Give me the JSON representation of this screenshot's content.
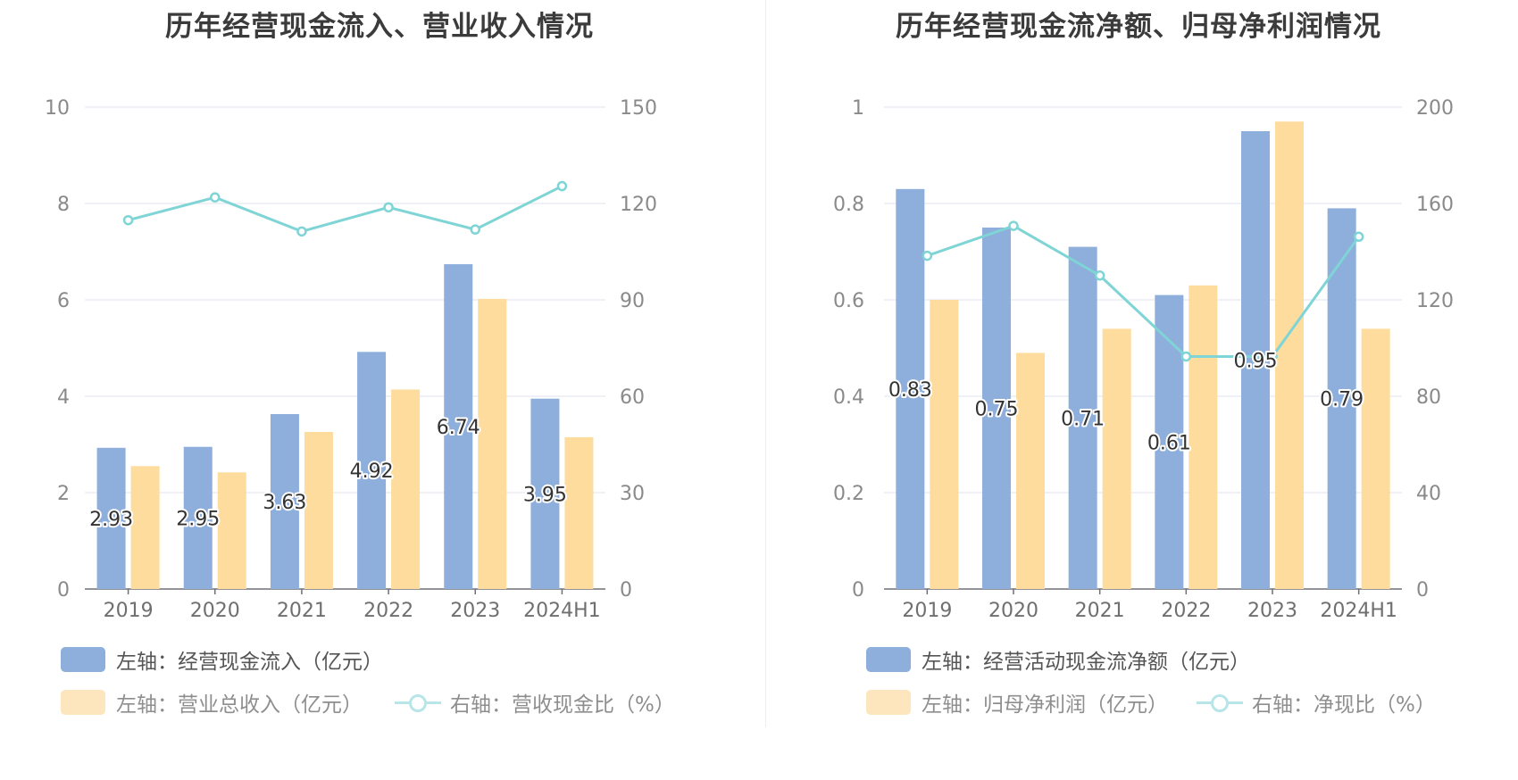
{
  "chart_data": [
    {
      "type": "bar+line",
      "title": "历年经营现金流入、营业收入情况",
      "categories": [
        "2019",
        "2020",
        "2021",
        "2022",
        "2023",
        "2024H1"
      ],
      "left_axis": {
        "min": 0,
        "max": 10,
        "ticks": [
          "0",
          "2",
          "4",
          "6",
          "8",
          "10"
        ]
      },
      "right_axis": {
        "min": 0,
        "max": 150,
        "ticks": [
          "0",
          "30",
          "60",
          "90",
          "120",
          "150"
        ]
      },
      "series": [
        {
          "name": "左轴：经营现金流入（亿元）",
          "axis": "left",
          "kind": "bar",
          "color": "#8eaedb",
          "values": [
            2.93,
            2.95,
            3.63,
            4.92,
            6.74,
            3.95
          ],
          "labels": [
            "2.93",
            "2.95",
            "3.63",
            "4.92",
            "6.74",
            "3.95"
          ]
        },
        {
          "name": "左轴：营业总收入（亿元）",
          "axis": "left",
          "kind": "bar",
          "color": "#fddc9e",
          "values": [
            2.55,
            2.42,
            3.26,
            4.14,
            6.02,
            3.15
          ]
        },
        {
          "name": "右轴：营收现金比（%）",
          "axis": "right",
          "kind": "line",
          "color": "#7fd4d6",
          "values": [
            114.8,
            121.9,
            111.3,
            118.8,
            111.9,
            125.4
          ]
        }
      ]
    },
    {
      "type": "bar+line",
      "title": "历年经营现金流净额、归母净利润情况",
      "categories": [
        "2019",
        "2020",
        "2021",
        "2022",
        "2023",
        "2024H1"
      ],
      "left_axis": {
        "min": 0,
        "max": 1,
        "ticks": [
          "0",
          "0.2",
          "0.4",
          "0.6",
          "0.8",
          "1"
        ]
      },
      "right_axis": {
        "min": 0,
        "max": 200,
        "ticks": [
          "0",
          "40",
          "80",
          "120",
          "160",
          "200"
        ]
      },
      "series": [
        {
          "name": "左轴：经营活动现金流净额（亿元）",
          "axis": "left",
          "kind": "bar",
          "color": "#8eaedb",
          "values": [
            0.83,
            0.75,
            0.71,
            0.61,
            0.95,
            0.79
          ],
          "labels": [
            "0.83",
            "0.75",
            "0.71",
            "0.61",
            "0.95",
            "0.79"
          ]
        },
        {
          "name": "左轴：归母净利润（亿元）",
          "axis": "left",
          "kind": "bar",
          "color": "#fddc9e",
          "values": [
            0.6,
            0.49,
            0.54,
            0.63,
            0.97,
            0.54
          ]
        },
        {
          "name": "右轴：净现比（%）",
          "axis": "right",
          "kind": "line",
          "color": "#7fd4d6",
          "values": [
            138.3,
            150.7,
            130.1,
            96.5,
            96.5,
            146.2
          ]
        }
      ]
    }
  ]
}
